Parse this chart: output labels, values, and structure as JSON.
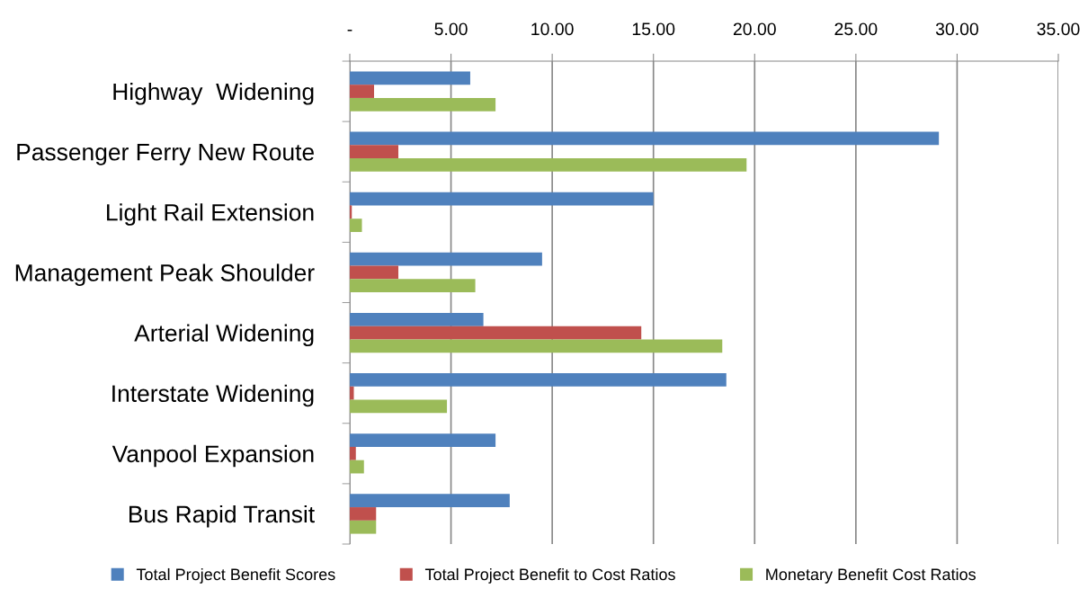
{
  "chart_data": {
    "type": "bar",
    "orientation": "horizontal",
    "categories": [
      "Highway  Widening",
      "Passenger Ferry New Route",
      "Light Rail Extension",
      "Management Peak Shoulder",
      "Arterial Widening",
      "Interstate Widening",
      "Vanpool Expansion",
      "Bus Rapid Transit"
    ],
    "series": [
      {
        "name": "Total Project Benefit Scores",
        "color": "#4f81bd",
        "values": [
          5.95,
          29.1,
          15.0,
          9.5,
          6.6,
          18.6,
          7.2,
          7.9
        ]
      },
      {
        "name": "Total Project Benefit to Cost Ratios",
        "color": "#c0504d",
        "values": [
          1.2,
          2.4,
          0.1,
          2.4,
          14.4,
          0.2,
          0.3,
          1.3
        ]
      },
      {
        "name": "Monetary Benefit Cost Ratios",
        "color": "#9bbb59",
        "values": [
          7.2,
          19.6,
          0.6,
          6.2,
          18.4,
          4.8,
          0.7,
          1.3
        ]
      }
    ],
    "xlim": [
      0,
      35
    ],
    "xticks": [
      {
        "value": 0,
        "label": "-"
      },
      {
        "value": 5,
        "label": "5.00"
      },
      {
        "value": 10,
        "label": "10.00"
      },
      {
        "value": 15,
        "label": "15.00"
      },
      {
        "value": 20,
        "label": "20.00"
      },
      {
        "value": 25,
        "label": "25.00"
      },
      {
        "value": 30,
        "label": "30.00"
      },
      {
        "value": 35,
        "label": "35.00"
      }
    ],
    "grid": "x",
    "legend": "bottom"
  }
}
